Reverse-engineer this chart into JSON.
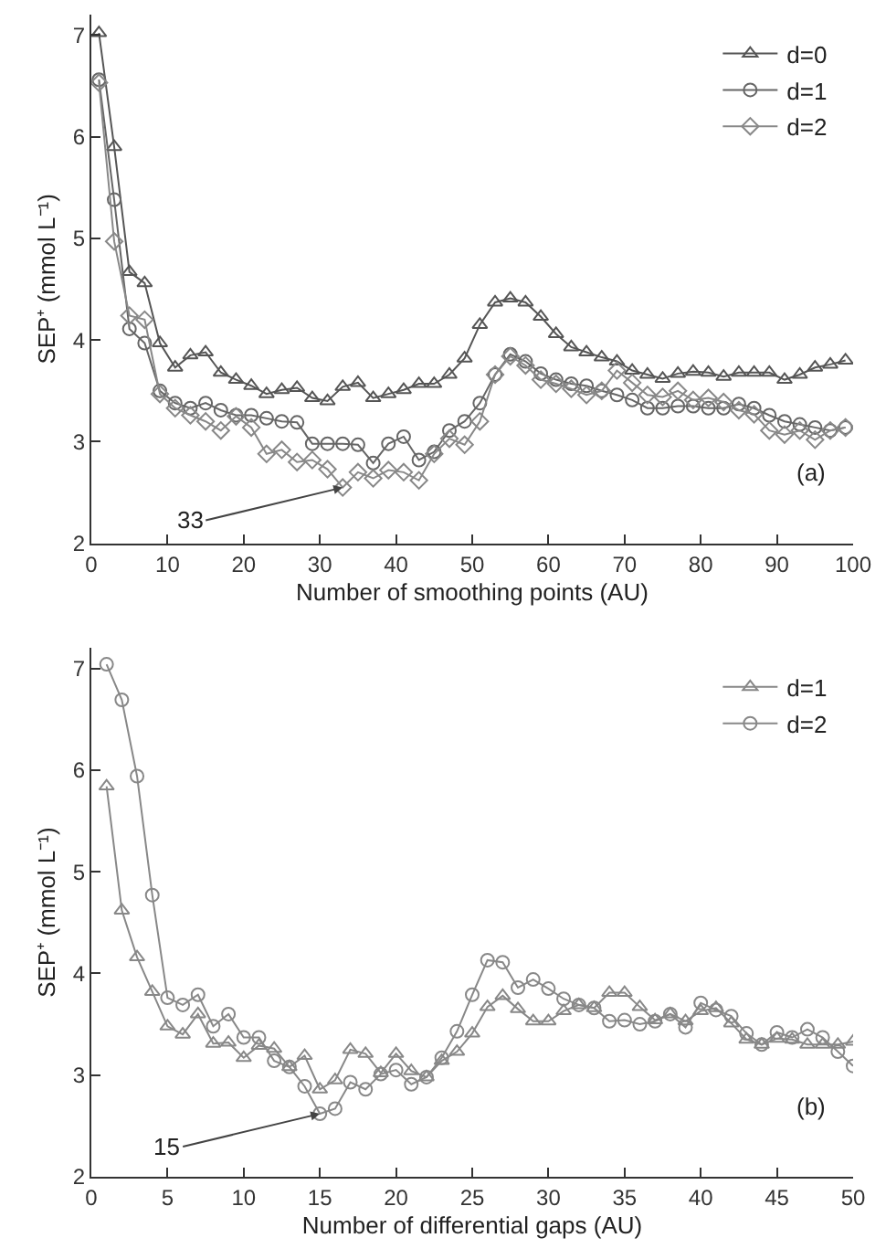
{
  "chart_data": [
    {
      "type": "line",
      "xlabel": "Number of smoothing points (AU)",
      "ylabel": "SEP⁺ (mmol L⁻¹)",
      "xlim": [
        0,
        100
      ],
      "xticks": [
        0,
        10,
        20,
        30,
        40,
        50,
        60,
        70,
        80,
        90,
        100
      ],
      "ylim": [
        2,
        7.2
      ],
      "yticks": [
        2,
        3,
        4,
        5,
        6,
        7
      ],
      "legend": "top right",
      "x": [
        1,
        3,
        5,
        7,
        9,
        11,
        13,
        15,
        17,
        19,
        21,
        23,
        25,
        27,
        29,
        31,
        33,
        35,
        37,
        39,
        41,
        43,
        45,
        47,
        49,
        51,
        53,
        55,
        57,
        59,
        61,
        63,
        65,
        67,
        69,
        71,
        73,
        75,
        77,
        79,
        81,
        83,
        85,
        87,
        89,
        91,
        93,
        95,
        97,
        99
      ],
      "series": [
        {
          "name": "d=0",
          "color": "#555555",
          "marker": "triangle",
          "values": [
            7.02,
            5.9,
            4.67,
            4.56,
            3.97,
            3.73,
            3.85,
            3.88,
            3.68,
            3.61,
            3.55,
            3.47,
            3.51,
            3.53,
            3.43,
            3.4,
            3.54,
            3.58,
            3.43,
            3.47,
            3.51,
            3.57,
            3.57,
            3.66,
            3.82,
            4.15,
            4.37,
            4.41,
            4.37,
            4.23,
            4.06,
            3.93,
            3.88,
            3.83,
            3.79,
            3.7,
            3.66,
            3.62,
            3.67,
            3.69,
            3.68,
            3.64,
            3.68,
            3.68,
            3.68,
            3.61,
            3.66,
            3.73,
            3.76,
            3.8
          ]
        },
        {
          "name": "d=1",
          "color": "#666666",
          "marker": "circle",
          "values": [
            6.56,
            5.38,
            4.11,
            3.97,
            3.5,
            3.38,
            3.33,
            3.38,
            3.31,
            3.26,
            3.26,
            3.23,
            3.2,
            3.19,
            2.98,
            2.98,
            2.98,
            2.97,
            2.79,
            2.98,
            3.05,
            2.82,
            2.9,
            3.11,
            3.2,
            3.38,
            3.66,
            3.86,
            3.79,
            3.67,
            3.61,
            3.57,
            3.55,
            3.5,
            3.46,
            3.41,
            3.33,
            3.33,
            3.35,
            3.35,
            3.33,
            3.33,
            3.37,
            3.33,
            3.26,
            3.2,
            3.17,
            3.14,
            3.11,
            3.14
          ]
        },
        {
          "name": "d=2",
          "color": "#888888",
          "marker": "diamond",
          "values": [
            6.53,
            4.97,
            4.24,
            4.2,
            3.47,
            3.33,
            3.26,
            3.2,
            3.11,
            3.25,
            3.14,
            2.88,
            2.92,
            2.8,
            2.82,
            2.73,
            2.55,
            2.7,
            2.64,
            2.72,
            2.7,
            2.62,
            2.88,
            3.03,
            2.97,
            3.2,
            3.66,
            3.84,
            3.75,
            3.61,
            3.57,
            3.52,
            3.46,
            3.5,
            3.7,
            3.58,
            3.46,
            3.44,
            3.5,
            3.41,
            3.43,
            3.39,
            3.31,
            3.27,
            3.11,
            3.07,
            3.11,
            3.02,
            3.11,
            3.14
          ]
        }
      ],
      "annotations": [
        {
          "text": "33",
          "x": 33,
          "y": 2.55
        },
        "(a)"
      ]
    },
    {
      "type": "line",
      "xlabel": "Number of differential gaps (AU)",
      "ylabel": "SEP⁺ (mmol L⁻¹)",
      "xlim": [
        0,
        50
      ],
      "xticks": [
        0,
        5,
        10,
        15,
        20,
        25,
        30,
        35,
        40,
        45,
        50
      ],
      "ylim": [
        2,
        7.2
      ],
      "yticks": [
        2,
        3,
        4,
        5,
        6,
        7
      ],
      "legend": "top right",
      "x": [
        1,
        2,
        3,
        4,
        5,
        6,
        7,
        8,
        9,
        10,
        11,
        12,
        13,
        14,
        15,
        16,
        17,
        18,
        19,
        20,
        21,
        22,
        23,
        24,
        25,
        26,
        27,
        28,
        29,
        30,
        31,
        32,
        33,
        34,
        35,
        36,
        37,
        38,
        39,
        40,
        41,
        42,
        43,
        44,
        45,
        46,
        47,
        48,
        49,
        50
      ],
      "series": [
        {
          "name": "d=1",
          "color": "#888888",
          "marker": "triangle",
          "values": [
            5.84,
            4.62,
            4.16,
            3.82,
            3.48,
            3.4,
            3.6,
            3.31,
            3.32,
            3.17,
            3.29,
            3.26,
            3.08,
            3.19,
            2.86,
            2.95,
            3.25,
            3.21,
            3.02,
            3.21,
            3.04,
            2.98,
            3.14,
            3.23,
            3.41,
            3.67,
            3.78,
            3.65,
            3.53,
            3.53,
            3.63,
            3.69,
            3.66,
            3.81,
            3.81,
            3.67,
            3.54,
            3.6,
            3.53,
            3.63,
            3.66,
            3.51,
            3.35,
            3.3,
            3.36,
            3.35,
            3.3,
            3.3,
            3.3,
            3.33
          ]
        },
        {
          "name": "d=2",
          "color": "#888888",
          "marker": "circle",
          "values": [
            7.04,
            6.69,
            5.94,
            4.77,
            3.76,
            3.69,
            3.79,
            3.48,
            3.6,
            3.37,
            3.37,
            3.14,
            3.08,
            2.89,
            2.62,
            2.67,
            2.93,
            2.86,
            3.01,
            3.05,
            2.91,
            2.98,
            3.17,
            3.43,
            3.79,
            4.13,
            4.11,
            3.86,
            3.94,
            3.85,
            3.75,
            3.69,
            3.66,
            3.53,
            3.54,
            3.5,
            3.53,
            3.6,
            3.47,
            3.71,
            3.64,
            3.58,
            3.41,
            3.3,
            3.42,
            3.37,
            3.45,
            3.37,
            3.23,
            3.09
          ]
        }
      ],
      "annotations": [
        {
          "text": "15",
          "x": 15,
          "y": 2.62
        },
        "(b)"
      ]
    }
  ]
}
